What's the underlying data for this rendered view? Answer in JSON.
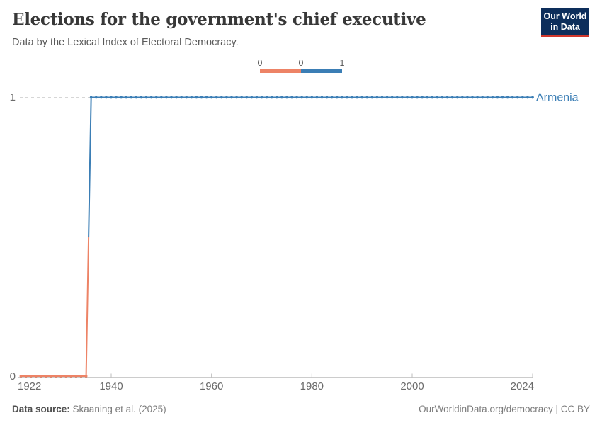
{
  "header": {
    "title": "Elections for the government's chief executive",
    "subtitle": "Data by the Lexical Index of Electoral Democracy."
  },
  "logo": {
    "line1": "Our World",
    "line2": "in Data"
  },
  "chart_data": {
    "type": "line",
    "title": "Elections for the government's chief executive",
    "subtitle": "Data by the Lexical Index of Electoral Democracy.",
    "entity_label": "Armenia",
    "xlim": [
      1922,
      2024
    ],
    "ylim": [
      0,
      1
    ],
    "x_ticks": [
      1922,
      1940,
      1960,
      1980,
      2000,
      2024
    ],
    "y_ticks": [
      0,
      1
    ],
    "grid": "dashed horizontal gridline at y=1; solid baseline axis at y=0",
    "legend": {
      "position": "top-center",
      "tick_labels": [
        "0",
        "0",
        "1"
      ],
      "bins": [
        {
          "value": 0,
          "color": "#ed8366"
        },
        {
          "value": 1,
          "color": "#3b7eb5"
        }
      ]
    },
    "series": [
      {
        "name": "Armenia",
        "marker": "dot-per-year",
        "color_by_value": {
          "0": "#ed8366",
          "1": "#3b7eb5"
        },
        "steps": [
          {
            "from_year": 1922,
            "to_year": 1935,
            "value": 0
          },
          {
            "from_year": 1936,
            "to_year": 2024,
            "value": 1
          }
        ]
      }
    ]
  },
  "footer": {
    "datasource_label": "Data source:",
    "datasource_value": "Skaaning et al. (2025)",
    "credit": "OurWorldinData.org/democracy | CC BY"
  },
  "colors": {
    "accent_blue": "#3b7eb5",
    "accent_orange": "#ed8366",
    "logo_bg": "#0d2e5b",
    "logo_accent": "#d0372c",
    "gridline": "#d6d6d6",
    "axis": "#9a9a9a",
    "tick": "#bdbdbd",
    "tick_text": "#6b6b6b"
  }
}
